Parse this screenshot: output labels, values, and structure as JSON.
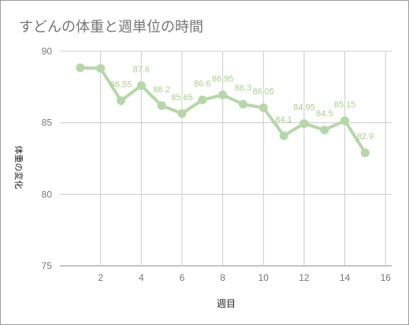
{
  "chart_data": {
    "type": "line",
    "title": "すどんの体重と週単位の時間",
    "xlabel": "週目",
    "ylabel": "体重の変化",
    "xlim": [
      1,
      16
    ],
    "ylim": [
      75,
      90
    ],
    "x_ticks": [
      2,
      4,
      6,
      8,
      10,
      12,
      14,
      16
    ],
    "y_ticks": [
      75,
      80,
      85,
      90
    ],
    "grid": true,
    "legend": "none",
    "series": [
      {
        "color": "#b6d7a8",
        "x": [
          1,
          2,
          3,
          4,
          5,
          6,
          7,
          8,
          9,
          10,
          11,
          12,
          13,
          14,
          15
        ],
        "values": [
          88.85,
          88.8,
          86.55,
          87.6,
          86.2,
          85.65,
          86.6,
          86.95,
          86.3,
          86.05,
          84.1,
          84.95,
          84.5,
          85.15,
          82.9
        ],
        "data_labels": [
          "",
          "",
          "86.55",
          "87.6",
          "86.2",
          "85.65",
          "86.6",
          "86.95",
          "86.3",
          "86.05",
          "84.1",
          "84.95",
          "84.5",
          "85.15",
          "82.9"
        ]
      }
    ]
  }
}
